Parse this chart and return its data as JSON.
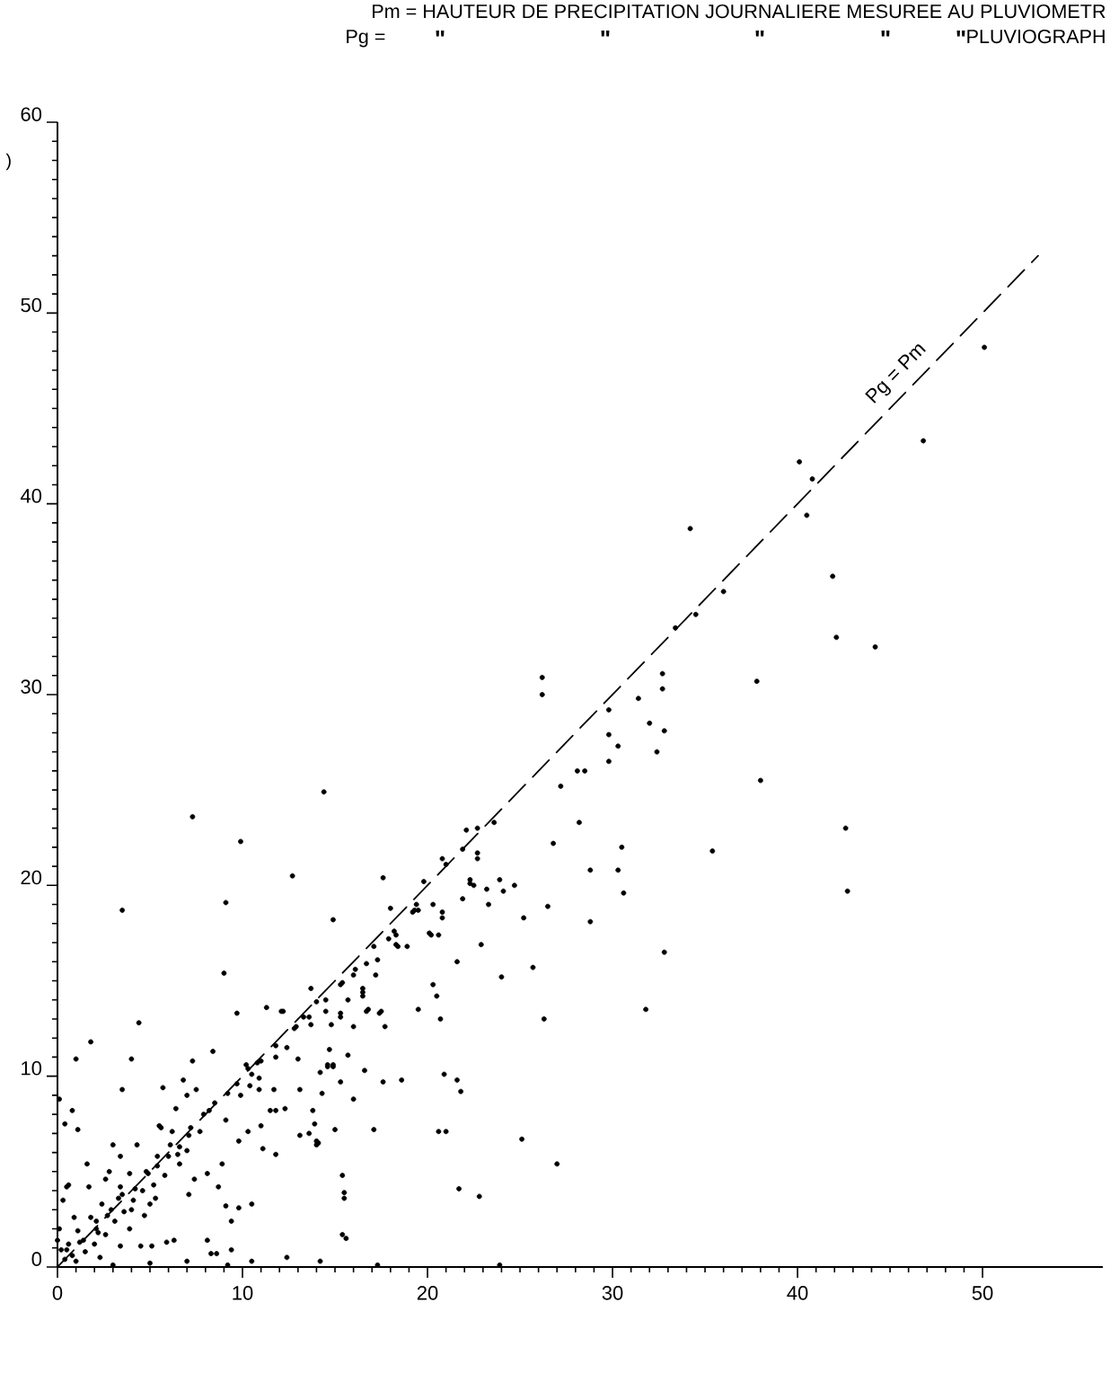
{
  "chart_data": {
    "type": "scatter",
    "ylabel": ")",
    "annotations": [
      "Pm = HAUTEUR DE PRECIPITATION JOURNALIERE MESUREE AU PLUVIOMETR",
      "Pg =",
      "\"",
      "\"",
      "\"",
      "\"",
      "\"",
      "PLUVIOGRAPH"
    ],
    "xlim": [
      0,
      56.5
    ],
    "ylim": [
      0,
      60
    ],
    "xticks": [
      0,
      10,
      20,
      30,
      40,
      50
    ],
    "yticks": [
      0,
      10,
      20,
      30,
      40,
      50,
      60
    ],
    "marker": "circle",
    "series": [
      {
        "color": "#000000",
        "x": [
          7.3,
          9.9,
          14.4,
          3.5,
          9.1,
          12.7,
          14.9,
          17.6,
          18.0,
          19.8,
          20.8,
          22.1,
          22.7,
          23.6,
          22.7,
          21.9,
          22.3,
          23.2,
          23.9,
          24.7,
          23.3,
          25.2,
          25.7,
          24.0,
          22.9,
          21.6,
          20.2,
          20.6,
          20.8,
          20.3,
          20.5,
          20.7,
          19.5,
          20.9,
          21.6,
          21.8,
          20.6,
          21.0,
          21.7,
          22.8,
          25.1,
          17.6,
          18.6,
          17.1,
          16.0,
          15.3,
          14.9,
          15.7,
          15.4,
          15.5,
          15.5,
          15.4,
          15.6,
          10.5,
          9.8,
          9.1,
          9.4,
          8.9,
          9.0,
          4.4,
          1.8,
          1.0,
          0.8,
          1.1,
          0.1,
          4.0,
          3.5,
          9.7,
          8.4,
          7.3,
          6.8,
          5.7,
          11.3,
          12.1,
          13.7,
          14.0,
          12.9,
          13.7,
          14.5,
          15.3,
          15.4,
          16.5,
          16.7,
          17.5,
          17.7,
          16.0,
          14.8,
          17.2,
          16.1,
          18.9,
          18.3,
          19.3,
          17.9,
          14.2,
          14.6,
          13.0,
          12.4,
          11.8,
          13.1,
          11.7,
          11.8,
          11.5,
          12.3,
          13.8,
          13.9,
          14.1,
          15.0,
          14.3,
          11.0,
          11.1,
          11.8,
          10.4,
          9.9,
          10.2,
          10.8,
          10.5,
          10.9,
          10.9,
          10.3,
          9.8,
          9.1,
          8.2,
          7.5,
          7.7,
          7.0,
          6.6,
          7.4,
          7.1,
          8.1,
          8.7,
          6.2,
          5.6,
          5.4,
          4.9,
          5.0,
          4.1,
          3.9,
          3.0,
          3.4,
          2.7,
          2.8,
          1.6,
          0.6,
          0.3,
          0.1,
          0.0,
          0.5,
          0.8,
          1.4,
          2.1,
          2.6,
          3.4,
          3.9,
          4.7,
          5.3,
          4.5,
          5.1,
          5.9,
          6.3,
          8.1,
          8.3,
          8.6,
          9.4,
          10.5,
          9.2,
          7.0,
          5.0,
          3.0,
          12.4,
          14.2,
          17.3,
          23.9,
          1.2,
          2.1,
          2.9,
          3.5,
          4.2,
          4.8,
          5.4,
          6.0,
          6.6,
          7.1,
          7.2,
          7.9,
          8.5,
          9.2,
          9.7,
          10.3,
          11.0,
          11.8,
          12.8,
          13.6,
          14.5,
          15.3,
          16.0,
          16.7,
          17.1,
          18.2,
          19.5,
          1.7,
          2.6,
          3.4,
          4.3,
          5.5,
          6.4,
          7.0,
          0.4,
          0.2,
          0.6,
          1.0,
          1.5,
          2.0,
          2.3,
          1.8,
          2.4,
          3.1,
          3.6,
          4.0,
          4.6,
          5.2,
          5.8,
          6.1,
          6.5,
          3.3,
          2.2,
          1.1,
          0.9,
          0.4,
          0.5,
          50.1,
          46.8,
          40.1,
          40.8,
          40.5,
          41.9,
          42.1,
          44.2,
          34.2,
          36.0,
          34.5,
          33.4,
          37.8,
          32.7,
          32.7,
          26.2,
          26.2,
          31.4,
          29.8,
          32.0,
          32.8,
          29.8,
          30.3,
          32.4,
          29.8,
          28.1,
          28.5,
          27.2,
          38.0,
          28.2,
          26.8,
          30.5,
          35.4,
          28.8,
          30.3,
          30.6,
          42.6,
          42.7,
          26.5,
          28.8,
          32.8,
          31.8,
          26.3,
          27.0,
          22.7,
          21.0,
          22.3,
          22.5,
          24.1,
          21.9,
          20.3,
          19.4,
          20.8,
          19.2,
          20.1,
          18.3,
          18.4,
          17.3,
          16.5,
          16.5,
          15.3,
          15.7,
          16.8,
          17.4,
          13.1,
          13.6,
          14.0,
          14.0,
          16.6,
          14.7,
          14.6,
          14.9,
          12.2,
          13.3
        ],
        "values": [
          23.6,
          22.3,
          24.9,
          18.7,
          19.1,
          20.5,
          18.2,
          20.4,
          18.8,
          20.2,
          21.4,
          22.9,
          23.0,
          23.3,
          21.7,
          21.9,
          20.1,
          19.8,
          20.3,
          20.0,
          19.0,
          18.3,
          15.7,
          15.2,
          16.9,
          16.0,
          17.4,
          17.4,
          18.6,
          14.8,
          14.2,
          13.0,
          13.5,
          10.1,
          9.8,
          9.2,
          7.1,
          7.1,
          4.1,
          3.7,
          6.7,
          9.7,
          9.8,
          7.2,
          8.8,
          9.7,
          10.5,
          11.1,
          4.8,
          3.9,
          3.6,
          1.7,
          1.5,
          3.3,
          3.1,
          3.2,
          2.4,
          5.4,
          15.4,
          12.8,
          11.8,
          10.9,
          8.2,
          7.2,
          8.8,
          10.9,
          9.3,
          13.3,
          11.3,
          10.8,
          9.8,
          9.4,
          13.6,
          13.4,
          14.6,
          13.9,
          12.6,
          12.7,
          13.4,
          13.3,
          14.9,
          14.4,
          13.4,
          13.4,
          12.6,
          12.6,
          12.7,
          15.3,
          15.6,
          16.8,
          16.9,
          18.7,
          17.2,
          10.2,
          10.5,
          10.9,
          11.5,
          11.0,
          9.3,
          9.3,
          8.2,
          8.2,
          8.3,
          8.2,
          7.5,
          6.5,
          7.2,
          9.1,
          7.4,
          6.2,
          5.9,
          9.5,
          9.0,
          10.6,
          10.7,
          10.1,
          9.9,
          9.3,
          7.1,
          6.6,
          7.7,
          8.2,
          9.3,
          7.1,
          6.1,
          5.4,
          4.6,
          3.8,
          4.9,
          4.2,
          7.1,
          7.3,
          5.8,
          4.9,
          3.3,
          3.5,
          4.9,
          6.4,
          4.2,
          2.7,
          5.0,
          5.4,
          4.3,
          3.5,
          2.0,
          1.4,
          0.9,
          0.6,
          1.4,
          2.4,
          1.7,
          1.1,
          2.0,
          2.7,
          3.6,
          1.1,
          1.1,
          1.3,
          1.4,
          1.4,
          0.7,
          0.7,
          0.9,
          0.3,
          0.1,
          0.3,
          0.2,
          0.1,
          0.5,
          0.3,
          0.1,
          0.1,
          1.3,
          2.0,
          3.0,
          3.8,
          4.1,
          5.0,
          5.3,
          5.8,
          6.3,
          6.9,
          7.3,
          8.0,
          8.6,
          9.1,
          9.6,
          10.4,
          10.8,
          11.6,
          12.5,
          13.1,
          14.0,
          14.8,
          15.3,
          15.9,
          16.8,
          17.6,
          18.7,
          4.2,
          4.6,
          5.8,
          6.4,
          7.4,
          8.3,
          9.0,
          0.4,
          0.9,
          1.2,
          0.3,
          0.8,
          1.2,
          0.5,
          2.6,
          3.3,
          2.4,
          2.9,
          3.0,
          4.0,
          4.3,
          4.8,
          6.4,
          5.9,
          3.6,
          1.8,
          1.9,
          2.6,
          7.5,
          4.2,
          48.2,
          43.3,
          42.2,
          41.3,
          39.4,
          36.2,
          33.0,
          32.5,
          38.7,
          35.4,
          34.2,
          33.5,
          30.7,
          31.1,
          30.3,
          30.9,
          30.0,
          29.8,
          29.2,
          28.5,
          28.1,
          27.9,
          27.3,
          27.0,
          26.5,
          26.0,
          26.0,
          25.2,
          25.5,
          23.3,
          22.2,
          22.0,
          21.8,
          20.8,
          20.8,
          19.6,
          23.0,
          19.7,
          18.9,
          18.1,
          16.5,
          13.5,
          13.0,
          5.4,
          21.4,
          21.1,
          20.3,
          20.0,
          19.7,
          19.3,
          19.0,
          19.0,
          18.3,
          18.6,
          17.5,
          17.4,
          16.8,
          16.1,
          14.6,
          14.2,
          13.1,
          14.0,
          13.5,
          13.3,
          6.9,
          7.0,
          6.6,
          6.4,
          10.3,
          11.4,
          10.6,
          10.6,
          13.4,
          13.1
        ]
      },
      {
        "type": "line",
        "name": "Pg = Pm",
        "color": "#000000",
        "marker": "none",
        "line_style": "dashed",
        "x": [
          0,
          53
        ],
        "values": [
          0,
          53
        ]
      }
    ]
  }
}
